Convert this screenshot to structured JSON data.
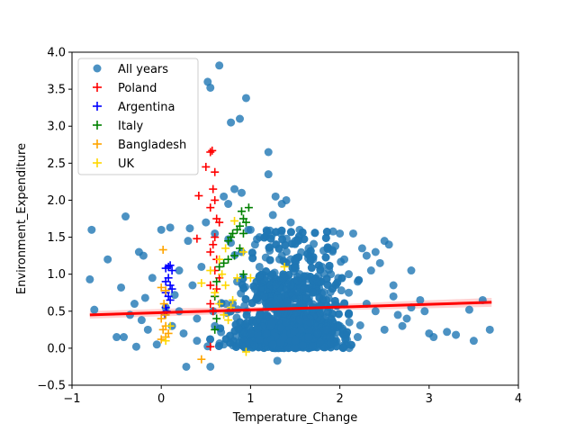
{
  "chart_data": {
    "type": "scatter",
    "title": "",
    "xlabel": "Temperature_Change",
    "ylabel": "Environment_Expenditure",
    "xlim": [
      -1,
      4
    ],
    "ylim": [
      -0.5,
      4.0
    ],
    "xticks": [
      -1,
      0,
      1,
      2,
      3,
      4
    ],
    "xtick_labels": [
      "−1",
      "0",
      "1",
      "2",
      "3",
      "4"
    ],
    "yticks": [
      -0.5,
      0.0,
      0.5,
      1.0,
      1.5,
      2.0,
      2.5,
      3.0,
      3.5,
      4.0
    ],
    "ytick_labels": [
      "−0.5",
      "0.0",
      "0.5",
      "1.0",
      "1.5",
      "2.0",
      "2.5",
      "3.0",
      "3.5",
      "4.0"
    ],
    "grid": false,
    "legend_position": "top-left",
    "colors": {
      "all_years": "#1f77b4",
      "poland": "#ff0000",
      "argentina": "#0000ff",
      "italy": "#008000",
      "bangladesh": "#ffa500",
      "uk": "#ffd700",
      "regression": "#ff0000",
      "ci_band": "#ffb3b3"
    },
    "regression": {
      "x": [
        -0.8,
        3.7
      ],
      "y": [
        0.45,
        0.62
      ],
      "ci_halfwidth": [
        0.05,
        0.05,
        0.03,
        0.05,
        0.06
      ]
    },
    "series": [
      {
        "name": "All years",
        "marker": "circle",
        "color": "#1f77b4",
        "points": [
          [
            -0.78,
            1.6
          ],
          [
            -0.8,
            0.93
          ],
          [
            -0.75,
            0.52
          ],
          [
            -0.6,
            1.2
          ],
          [
            -0.5,
            0.15
          ],
          [
            -0.45,
            0.82
          ],
          [
            -0.42,
            0.15
          ],
          [
            -0.4,
            1.78
          ],
          [
            -0.35,
            0.45
          ],
          [
            -0.3,
            0.6
          ],
          [
            -0.28,
            0.02
          ],
          [
            -0.25,
            1.3
          ],
          [
            -0.22,
            0.38
          ],
          [
            -0.2,
            1.25
          ],
          [
            -0.18,
            0.68
          ],
          [
            -0.15,
            0.25
          ],
          [
            -0.1,
            0.95
          ],
          [
            -0.05,
            0.05
          ],
          [
            0.0,
            1.6
          ],
          [
            0.05,
            0.55
          ],
          [
            0.1,
            1.63
          ],
          [
            0.12,
            0.3
          ],
          [
            0.15,
            0.72
          ],
          [
            0.2,
            1.05
          ],
          [
            0.25,
            0.2
          ],
          [
            0.3,
            1.45
          ],
          [
            0.32,
            1.62
          ],
          [
            0.35,
            0.85
          ],
          [
            0.4,
            0.4
          ],
          [
            0.45,
            1.1
          ],
          [
            0.5,
            1.7
          ],
          [
            0.52,
            3.6
          ],
          [
            0.55,
            3.52
          ],
          [
            0.58,
            0.5
          ],
          [
            0.6,
            1.55
          ],
          [
            0.65,
            3.82
          ],
          [
            0.7,
            2.05
          ],
          [
            0.75,
            1.95
          ],
          [
            0.78,
            3.05
          ],
          [
            0.82,
            2.15
          ],
          [
            0.85,
            0.9
          ],
          [
            0.88,
            3.1
          ],
          [
            0.9,
            2.1
          ],
          [
            0.95,
            3.38
          ],
          [
            1.0,
            1.6
          ],
          [
            1.05,
            1.4
          ],
          [
            1.1,
            1.5
          ],
          [
            1.15,
            0.7
          ],
          [
            1.2,
            2.65
          ],
          [
            1.2,
            2.35
          ],
          [
            1.25,
            1.8
          ],
          [
            1.28,
            2.05
          ],
          [
            1.3,
            -0.17
          ],
          [
            1.35,
            1.95
          ],
          [
            1.4,
            2.0
          ],
          [
            1.45,
            1.7
          ],
          [
            1.5,
            1.45
          ],
          [
            1.55,
            1.6
          ],
          [
            1.6,
            0.8
          ],
          [
            1.65,
            1.35
          ],
          [
            1.7,
            1.2
          ],
          [
            1.75,
            0.9
          ],
          [
            1.8,
            1.1
          ],
          [
            1.85,
            0.65
          ],
          [
            1.9,
            1.0
          ],
          [
            1.95,
            1.38
          ],
          [
            2.0,
            1.55
          ],
          [
            2.05,
            1.2
          ],
          [
            2.1,
            0.75
          ],
          [
            2.15,
            1.55
          ],
          [
            2.2,
            0.9
          ],
          [
            2.25,
            1.35
          ],
          [
            2.3,
            0.6
          ],
          [
            2.35,
            1.05
          ],
          [
            2.4,
            1.3
          ],
          [
            2.45,
            1.15
          ],
          [
            2.5,
            1.45
          ],
          [
            2.55,
            1.4
          ],
          [
            2.6,
            0.85
          ],
          [
            2.65,
            0.45
          ],
          [
            2.7,
            0.3
          ],
          [
            2.75,
            0.4
          ],
          [
            2.8,
            0.55
          ],
          [
            2.9,
            0.65
          ],
          [
            2.95,
            0.5
          ],
          [
            3.0,
            0.2
          ],
          [
            3.05,
            0.15
          ],
          [
            3.2,
            0.22
          ],
          [
            3.3,
            0.18
          ],
          [
            3.45,
            0.52
          ],
          [
            3.5,
            0.1
          ],
          [
            3.6,
            0.65
          ],
          [
            3.68,
            0.25
          ],
          [
            0.28,
            -0.25
          ],
          [
            0.55,
            -0.25
          ],
          [
            1.25,
            0.05
          ],
          [
            1.5,
            0.1
          ],
          [
            1.75,
            0.2
          ],
          [
            2.0,
            0.3
          ],
          [
            0.2,
            0.5
          ],
          [
            0.6,
            0.3
          ],
          [
            0.8,
            0.6
          ],
          [
            1.0,
            0.2
          ],
          [
            1.3,
            0.45
          ],
          [
            1.45,
            0.85
          ],
          [
            1.6,
            0.55
          ],
          [
            1.9,
            0.4
          ],
          [
            2.2,
            0.15
          ],
          [
            2.4,
            0.5
          ],
          [
            2.6,
            0.7
          ],
          [
            0.9,
            1.3
          ],
          [
            1.1,
            1.1
          ],
          [
            1.35,
            1.25
          ],
          [
            1.55,
            1.0
          ],
          [
            1.7,
            0.75
          ],
          [
            2.1,
            1.0
          ],
          [
            2.3,
            1.25
          ],
          [
            0.4,
            0.1
          ],
          [
            0.7,
            0.05
          ],
          [
            1.05,
            0.8
          ],
          [
            1.25,
            0.6
          ],
          [
            1.4,
            0.35
          ],
          [
            1.65,
            0.15
          ],
          [
            1.85,
            0.25
          ],
          [
            2.05,
            0.6
          ],
          [
            2.5,
            0.25
          ],
          [
            2.8,
            1.05
          ]
        ],
        "dense_cluster": {
          "x_range": [
            0.3,
            2.6
          ],
          "y_range": [
            0.0,
            1.0
          ],
          "count": 1800
        }
      },
      {
        "name": "Poland",
        "marker": "plus",
        "color": "#ff0000",
        "points": [
          [
            0.42,
            2.06
          ],
          [
            0.5,
            2.45
          ],
          [
            0.55,
            2.65
          ],
          [
            0.57,
            2.67
          ],
          [
            0.6,
            2.38
          ],
          [
            0.58,
            2.15
          ],
          [
            0.6,
            2.0
          ],
          [
            0.55,
            1.9
          ],
          [
            0.62,
            1.75
          ],
          [
            0.65,
            1.7
          ],
          [
            0.6,
            1.5
          ],
          [
            0.58,
            1.4
          ],
          [
            0.4,
            1.48
          ],
          [
            0.55,
            1.3
          ],
          [
            0.62,
            1.2
          ],
          [
            0.6,
            1.05
          ],
          [
            0.65,
            0.95
          ],
          [
            0.55,
            0.85
          ],
          [
            0.62,
            0.8
          ],
          [
            0.6,
            0.7
          ],
          [
            0.55,
            0.6
          ],
          [
            0.58,
            0.5
          ],
          [
            0.55,
            0.02
          ]
        ]
      },
      {
        "name": "Argentina",
        "marker": "plus",
        "color": "#0000ff",
        "points": [
          [
            0.05,
            1.08
          ],
          [
            0.08,
            1.1
          ],
          [
            0.1,
            1.12
          ],
          [
            0.12,
            1.05
          ],
          [
            0.08,
            0.95
          ],
          [
            0.05,
            0.9
          ],
          [
            0.1,
            0.85
          ],
          [
            0.12,
            0.8
          ],
          [
            0.05,
            0.75
          ],
          [
            0.08,
            0.7
          ],
          [
            0.1,
            0.65
          ],
          [
            0.05,
            0.55
          ],
          [
            0.06,
            0.5
          ],
          [
            0.04,
            0.45
          ]
        ]
      },
      {
        "name": "Italy",
        "marker": "plus",
        "color": "#008000",
        "points": [
          [
            0.98,
            1.9
          ],
          [
            0.9,
            1.85
          ],
          [
            0.92,
            1.75
          ],
          [
            0.95,
            1.7
          ],
          [
            0.88,
            1.65
          ],
          [
            0.85,
            1.6
          ],
          [
            0.92,
            1.55
          ],
          [
            0.8,
            1.55
          ],
          [
            0.78,
            1.5
          ],
          [
            0.75,
            1.45
          ],
          [
            0.88,
            1.35
          ],
          [
            0.82,
            1.25
          ],
          [
            0.75,
            1.2
          ],
          [
            0.7,
            1.15
          ],
          [
            0.65,
            1.1
          ],
          [
            0.92,
            1.0
          ],
          [
            0.62,
            0.9
          ],
          [
            0.6,
            0.7
          ],
          [
            0.62,
            0.4
          ],
          [
            0.6,
            0.25
          ]
        ]
      },
      {
        "name": "Bangladesh",
        "marker": "plus",
        "color": "#ffa500",
        "points": [
          [
            0.02,
            1.33
          ],
          [
            0.0,
            0.82
          ],
          [
            0.05,
            0.78
          ],
          [
            0.03,
            0.6
          ],
          [
            0.05,
            0.45
          ],
          [
            0.0,
            0.4
          ],
          [
            0.05,
            0.3
          ],
          [
            0.02,
            0.25
          ],
          [
            0.08,
            0.2
          ],
          [
            0.05,
            0.15
          ],
          [
            0.0,
            0.12
          ],
          [
            0.45,
            -0.15
          ]
        ]
      },
      {
        "name": "UK",
        "marker": "plus",
        "color": "#ffd700",
        "points": [
          [
            0.82,
            1.72
          ],
          [
            0.72,
            1.35
          ],
          [
            0.92,
            1.3
          ],
          [
            0.65,
            1.2
          ],
          [
            1.38,
            1.1
          ],
          [
            0.55,
            1.05
          ],
          [
            0.68,
            1.0
          ],
          [
            0.85,
            0.95
          ],
          [
            1.0,
            0.95
          ],
          [
            0.45,
            0.88
          ],
          [
            0.72,
            0.85
          ],
          [
            0.6,
            0.75
          ],
          [
            0.8,
            0.65
          ],
          [
            0.65,
            0.6
          ],
          [
            0.78,
            0.55
          ],
          [
            0.7,
            0.45
          ],
          [
            0.75,
            0.38
          ],
          [
            0.1,
            0.3
          ],
          [
            0.05,
            0.1
          ],
          [
            0.95,
            -0.05
          ]
        ]
      }
    ]
  }
}
